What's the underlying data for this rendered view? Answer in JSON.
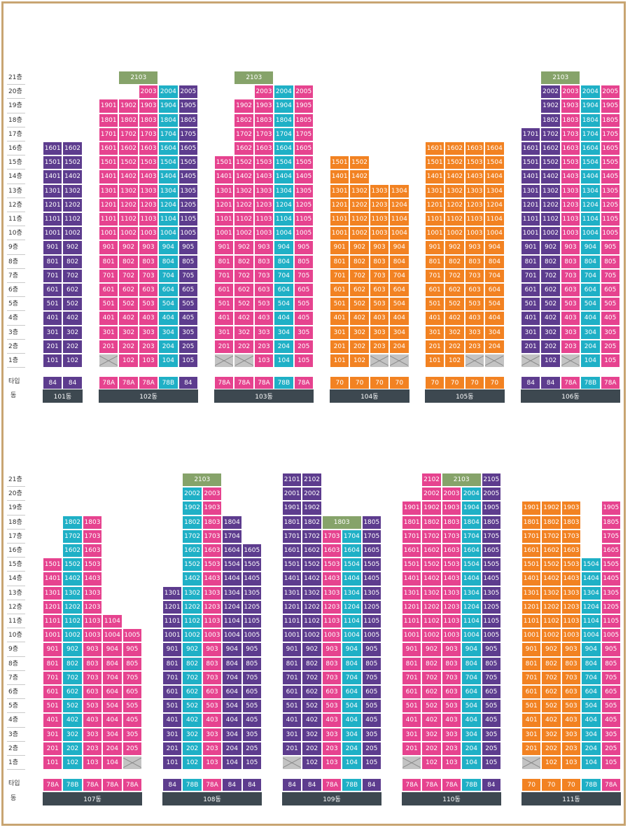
{
  "colors": {
    "P": "#e6438f",
    "V": "#5d3c8e",
    "T": "#1fb0c6",
    "O": "#f28222",
    "G": "#86a36a"
  },
  "floor_labels": [
    "21층",
    "20층",
    "19층",
    "18층",
    "17층",
    "16층",
    "15층",
    "14층",
    "13층",
    "12층",
    "11층",
    "10층",
    "9층",
    "8층",
    "7층",
    "6층",
    "5층",
    "4층",
    "3층",
    "2층",
    "1층"
  ],
  "type_label": "타입",
  "building_label": "동",
  "blocks": [
    {
      "name": "101동",
      "types": [
        "84",
        "84"
      ],
      "typecolors": [
        "V",
        "V"
      ],
      "cols": [
        {
          "c": "V",
          "top": 16,
          "bottom": 1
        },
        {
          "c": "V",
          "top": 16,
          "bottom": 1
        }
      ]
    },
    {
      "name": "102동",
      "types": [
        "78A",
        "78A",
        "78A",
        "78B",
        "84"
      ],
      "typecolors": [
        "P",
        "P",
        "P",
        "T",
        "V"
      ],
      "merged": [
        {
          "floor": 21,
          "from": 2,
          "to": 3,
          "text": "2103",
          "c": "G"
        }
      ],
      "cols": [
        {
          "c": "P",
          "top": 19,
          "bottom": 2,
          "empty": [
            1
          ]
        },
        {
          "c": "P",
          "top": 19,
          "bottom": 1
        },
        {
          "c": "P",
          "top": 20,
          "bottom": 1
        },
        {
          "c": "T",
          "top": 20,
          "bottom": 1
        },
        {
          "c": "V",
          "top": 20,
          "bottom": 1
        }
      ]
    },
    {
      "name": "103동",
      "types": [
        "78A",
        "78A",
        "78A",
        "78B",
        "78A"
      ],
      "typecolors": [
        "P",
        "P",
        "P",
        "T",
        "P"
      ],
      "merged": [
        {
          "floor": 21,
          "from": 2,
          "to": 3,
          "text": "2103",
          "c": "G"
        }
      ],
      "cols": [
        {
          "c": "P",
          "top": 15,
          "bottom": 2,
          "empty": [
            1
          ]
        },
        {
          "c": "P",
          "top": 19,
          "bottom": 2,
          "empty": [
            1
          ]
        },
        {
          "c": "P",
          "top": 20,
          "bottom": 1
        },
        {
          "c": "T",
          "top": 20,
          "bottom": 1
        },
        {
          "c": "P",
          "top": 20,
          "bottom": 1
        }
      ]
    },
    {
      "name": "104동",
      "types": [
        "70",
        "70",
        "70",
        "70"
      ],
      "typecolors": [
        "O",
        "O",
        "O",
        "O"
      ],
      "cols": [
        {
          "c": "O",
          "top": 15,
          "bottom": 1
        },
        {
          "c": "O",
          "top": 15,
          "bottom": 1
        },
        {
          "c": "O",
          "top": 13,
          "bottom": 2,
          "empty": [
            1
          ]
        },
        {
          "c": "O",
          "top": 13,
          "bottom": 2,
          "empty": [
            1
          ]
        }
      ]
    },
    {
      "name": "105동",
      "types": [
        "70",
        "70",
        "70",
        "70"
      ],
      "typecolors": [
        "O",
        "O",
        "O",
        "O"
      ],
      "cols": [
        {
          "c": "O",
          "top": 16,
          "bottom": 1
        },
        {
          "c": "O",
          "top": 16,
          "bottom": 1
        },
        {
          "c": "O",
          "top": 16,
          "bottom": 2,
          "empty": [
            1
          ]
        },
        {
          "c": "O",
          "top": 16,
          "bottom": 2,
          "empty": [
            1
          ]
        }
      ]
    },
    {
      "name": "106동",
      "types": [
        "84",
        "84",
        "78A",
        "78B",
        "78A"
      ],
      "typecolors": [
        "V",
        "V",
        "P",
        "T",
        "P"
      ],
      "merged": [
        {
          "floor": 21,
          "from": 2,
          "to": 3,
          "text": "2103",
          "c": "G"
        }
      ],
      "cols": [
        {
          "c": "V",
          "top": 17,
          "bottom": 2,
          "empty": [
            1
          ]
        },
        {
          "c": "V",
          "top": 21,
          "bottom": 1
        },
        {
          "c": "P",
          "top": 20,
          "bottom": 2,
          "empty": [
            1
          ]
        },
        {
          "c": "T",
          "top": 20,
          "bottom": 1
        },
        {
          "c": "P",
          "top": 20,
          "bottom": 1
        }
      ]
    },
    {
      "name": "107동",
      "types": [
        "78A",
        "78B",
        "78A",
        "78A",
        "78A"
      ],
      "typecolors": [
        "P",
        "T",
        "P",
        "P",
        "P"
      ],
      "cols": [
        {
          "c": "P",
          "top": 15,
          "bottom": 1
        },
        {
          "c": "T",
          "top": 18,
          "bottom": 1
        },
        {
          "c": "P",
          "top": 18,
          "bottom": 1
        },
        {
          "c": "P",
          "top": 11,
          "bottom": 1
        },
        {
          "c": "P",
          "top": 10,
          "bottom": 2,
          "empty": [
            1
          ]
        }
      ]
    },
    {
      "name": "108동",
      "types": [
        "84",
        "78B",
        "78A",
        "84",
        "84"
      ],
      "typecolors": [
        "V",
        "T",
        "P",
        "V",
        "V"
      ],
      "merged": [
        {
          "floor": 21,
          "from": 2,
          "to": 3,
          "text": "2103",
          "c": "G"
        }
      ],
      "cols": [
        {
          "c": "V",
          "top": 13,
          "bottom": 1
        },
        {
          "c": "T",
          "top": 20,
          "bottom": 1
        },
        {
          "c": "P",
          "top": 20,
          "bottom": 1
        },
        {
          "c": "V",
          "top": 18,
          "bottom": 1
        },
        {
          "c": "V",
          "top": 16,
          "bottom": 1
        }
      ]
    },
    {
      "name": "109동",
      "types": [
        "84",
        "84",
        "78A",
        "78B",
        "84"
      ],
      "typecolors": [
        "V",
        "V",
        "P",
        "T",
        "V"
      ],
      "merged": [
        {
          "floor": 18,
          "from": 3,
          "to": 4,
          "text": "1803",
          "c": "G"
        }
      ],
      "cols": [
        {
          "c": "V",
          "top": 21,
          "bottom": 2,
          "empty": [
            1
          ]
        },
        {
          "c": "V",
          "top": 21,
          "bottom": 1
        },
        {
          "c": "P",
          "top": 17,
          "bottom": 1
        },
        {
          "c": "T",
          "top": 17,
          "bottom": 1
        },
        {
          "c": "V",
          "top": 18,
          "bottom": 1
        }
      ]
    },
    {
      "name": "110동",
      "types": [
        "78A",
        "78A",
        "78A",
        "78B",
        "84"
      ],
      "typecolors": [
        "P",
        "P",
        "P",
        "T",
        "V"
      ],
      "merged": [
        {
          "floor": 21,
          "from": 3,
          "to": 4,
          "text": "2103",
          "c": "G"
        }
      ],
      "cols": [
        {
          "c": "P",
          "top": 19,
          "bottom": 2,
          "empty": [
            1
          ]
        },
        {
          "c": "P",
          "top": 21,
          "bottom": 1
        },
        {
          "c": "P",
          "top": 20,
          "bottom": 1
        },
        {
          "c": "T",
          "top": 20,
          "bottom": 1
        },
        {
          "c": "V",
          "top": 21,
          "bottom": 1
        }
      ]
    },
    {
      "name": "111동",
      "types": [
        "70",
        "70",
        "70",
        "78B",
        "78A"
      ],
      "typecolors": [
        "O",
        "O",
        "O",
        "T",
        "P"
      ],
      "cols": [
        {
          "c": "O",
          "top": 19,
          "bottom": 2,
          "empty": [
            1
          ]
        },
        {
          "c": "O",
          "top": 19,
          "bottom": 1
        },
        {
          "c": "O",
          "top": 19,
          "bottom": 1
        },
        {
          "c": "T",
          "top": 15,
          "bottom": 1
        },
        {
          "c": "P",
          "top": 19,
          "bottom": 1
        }
      ]
    }
  ]
}
